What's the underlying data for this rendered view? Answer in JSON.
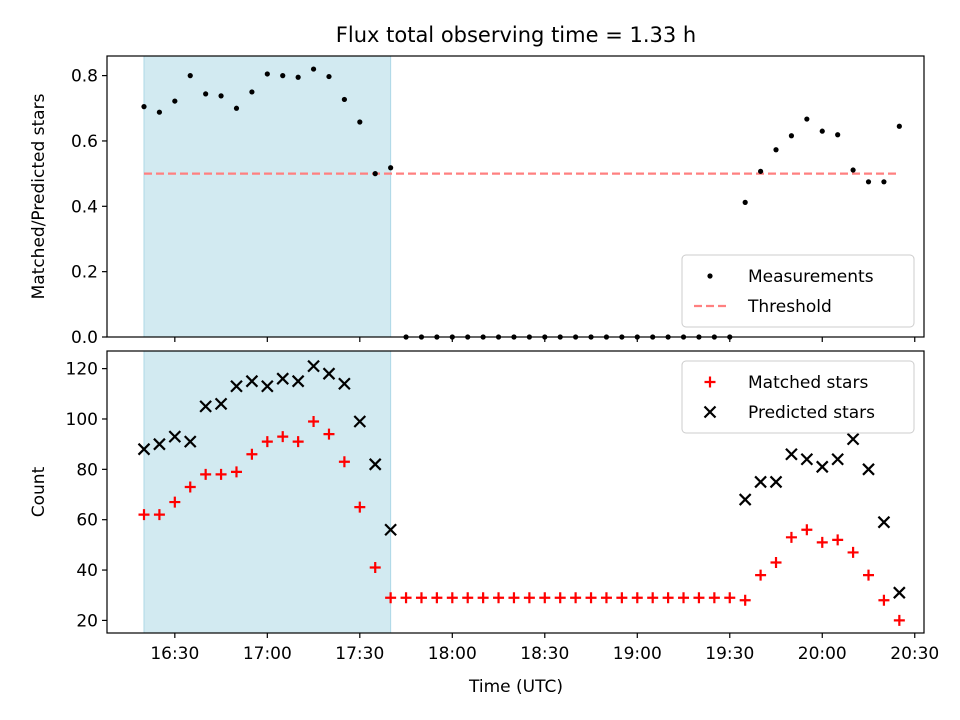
{
  "chart_data": [
    {
      "type": "scatter",
      "title": "Flux total observing time = 1.33 h",
      "ylabel": "Matched/Predicted stars",
      "xlabel": "",
      "ylim": [
        0,
        0.86
      ],
      "yticks": [
        "0.0",
        "0.2",
        "0.4",
        "0.6",
        "0.8"
      ],
      "shaded_interval": [
        "16:20",
        "17:40"
      ],
      "shade_color": "#add8e6",
      "legend_position": "bottom-right",
      "threshold": {
        "name": "Threshold",
        "value": 0.5,
        "x_range": [
          "16:20",
          "20:25"
        ],
        "color": "#ff8080"
      },
      "series": [
        {
          "name": "Measurements",
          "marker": "dot",
          "color": "#000000",
          "points": [
            [
              "16:20",
              0.705
            ],
            [
              "16:25",
              0.688
            ],
            [
              "16:30",
              0.722
            ],
            [
              "16:35",
              0.8
            ],
            [
              "16:40",
              0.744
            ],
            [
              "16:45",
              0.738
            ],
            [
              "16:50",
              0.7
            ],
            [
              "16:55",
              0.75
            ],
            [
              "17:00",
              0.805
            ],
            [
              "17:05",
              0.8
            ],
            [
              "17:10",
              0.795
            ],
            [
              "17:15",
              0.82
            ],
            [
              "17:20",
              0.797
            ],
            [
              "17:25",
              0.727
            ],
            [
              "17:30",
              0.658
            ],
            [
              "17:35",
              0.5
            ],
            [
              "17:40",
              0.518
            ],
            [
              "17:45",
              0.0
            ],
            [
              "17:50",
              0.0
            ],
            [
              "17:55",
              0.0
            ],
            [
              "18:00",
              0.0
            ],
            [
              "18:05",
              0.0
            ],
            [
              "18:10",
              0.0
            ],
            [
              "18:15",
              0.0
            ],
            [
              "18:20",
              0.0
            ],
            [
              "18:25",
              0.0
            ],
            [
              "18:30",
              0.0
            ],
            [
              "18:35",
              0.0
            ],
            [
              "18:40",
              0.0
            ],
            [
              "18:45",
              0.0
            ],
            [
              "18:50",
              0.0
            ],
            [
              "18:55",
              0.0
            ],
            [
              "19:00",
              0.0
            ],
            [
              "19:05",
              0.0
            ],
            [
              "19:10",
              0.0
            ],
            [
              "19:15",
              0.0
            ],
            [
              "19:20",
              0.0
            ],
            [
              "19:25",
              0.0
            ],
            [
              "19:30",
              0.0
            ],
            [
              "19:35",
              0.412
            ],
            [
              "19:40",
              0.507
            ],
            [
              "19:45",
              0.573
            ],
            [
              "19:50",
              0.616
            ],
            [
              "19:55",
              0.667
            ],
            [
              "20:00",
              0.63
            ],
            [
              "20:05",
              0.619
            ],
            [
              "20:10",
              0.511
            ],
            [
              "20:15",
              0.475
            ],
            [
              "20:20",
              0.475
            ],
            [
              "20:25",
              0.645
            ]
          ]
        }
      ]
    },
    {
      "type": "scatter",
      "title": "",
      "ylabel": "Count",
      "xlabel": "Time (UTC)",
      "ylim": [
        15,
        127
      ],
      "yticks": [
        "20",
        "40",
        "60",
        "80",
        "100",
        "120"
      ],
      "xlim": [
        "16:08",
        "20:33"
      ],
      "xticks": [
        "16:30",
        "17:00",
        "17:30",
        "18:00",
        "18:30",
        "19:00",
        "19:30",
        "20:00",
        "20:30"
      ],
      "shaded_interval": [
        "16:20",
        "17:40"
      ],
      "shade_color": "#add8e6",
      "legend_position": "top-right",
      "series": [
        {
          "name": "Matched stars",
          "marker": "plus",
          "color": "#ff0000",
          "points": [
            [
              "16:20",
              62
            ],
            [
              "16:25",
              62
            ],
            [
              "16:30",
              67
            ],
            [
              "16:35",
              73
            ],
            [
              "16:40",
              78
            ],
            [
              "16:45",
              78
            ],
            [
              "16:50",
              79
            ],
            [
              "16:55",
              86
            ],
            [
              "17:00",
              91
            ],
            [
              "17:05",
              93
            ],
            [
              "17:10",
              91
            ],
            [
              "17:15",
              99
            ],
            [
              "17:20",
              94
            ],
            [
              "17:25",
              83
            ],
            [
              "17:30",
              65
            ],
            [
              "17:35",
              41
            ],
            [
              "17:40",
              29
            ],
            [
              "17:45",
              29
            ],
            [
              "17:50",
              29
            ],
            [
              "17:55",
              29
            ],
            [
              "18:00",
              29
            ],
            [
              "18:05",
              29
            ],
            [
              "18:10",
              29
            ],
            [
              "18:15",
              29
            ],
            [
              "18:20",
              29
            ],
            [
              "18:25",
              29
            ],
            [
              "18:30",
              29
            ],
            [
              "18:35",
              29
            ],
            [
              "18:40",
              29
            ],
            [
              "18:45",
              29
            ],
            [
              "18:50",
              29
            ],
            [
              "18:55",
              29
            ],
            [
              "19:00",
              29
            ],
            [
              "19:05",
              29
            ],
            [
              "19:10",
              29
            ],
            [
              "19:15",
              29
            ],
            [
              "19:20",
              29
            ],
            [
              "19:25",
              29
            ],
            [
              "19:30",
              29
            ],
            [
              "19:35",
              28
            ],
            [
              "19:40",
              38
            ],
            [
              "19:45",
              43
            ],
            [
              "19:50",
              53
            ],
            [
              "19:55",
              56
            ],
            [
              "20:00",
              51
            ],
            [
              "20:05",
              52
            ],
            [
              "20:10",
              47
            ],
            [
              "20:15",
              38
            ],
            [
              "20:20",
              28
            ],
            [
              "20:25",
              20
            ]
          ]
        },
        {
          "name": "Predicted stars",
          "marker": "x",
          "color": "#000000",
          "points": [
            [
              "16:20",
              88
            ],
            [
              "16:25",
              90
            ],
            [
              "16:30",
              93
            ],
            [
              "16:35",
              91
            ],
            [
              "16:40",
              105
            ],
            [
              "16:45",
              106
            ],
            [
              "16:50",
              113
            ],
            [
              "16:55",
              115
            ],
            [
              "17:00",
              113
            ],
            [
              "17:05",
              116
            ],
            [
              "17:10",
              115
            ],
            [
              "17:15",
              121
            ],
            [
              "17:20",
              118
            ],
            [
              "17:25",
              114
            ],
            [
              "17:30",
              99
            ],
            [
              "17:35",
              82
            ],
            [
              "17:40",
              56
            ],
            [
              "19:35",
              68
            ],
            [
              "19:40",
              75
            ],
            [
              "19:45",
              75
            ],
            [
              "19:50",
              86
            ],
            [
              "19:55",
              84
            ],
            [
              "20:00",
              81
            ],
            [
              "20:05",
              84
            ],
            [
              "20:10",
              92
            ],
            [
              "20:15",
              80
            ],
            [
              "20:20",
              59
            ],
            [
              "20:25",
              31
            ]
          ]
        }
      ]
    }
  ]
}
